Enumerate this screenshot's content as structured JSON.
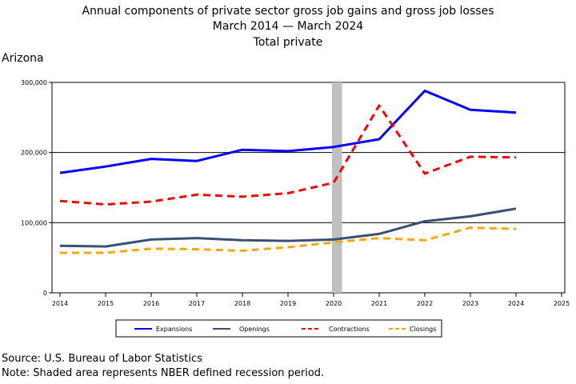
{
  "title": {
    "line1": "Annual components of private sector gross job gains and gross job losses",
    "line2": "March 2014 — March 2024",
    "line3": "Total private"
  },
  "region": "Arizona",
  "source": "Source: U.S. Bureau of Labor Statistics",
  "note": "Note: Shaded area represents NBER defined recession period.",
  "chart_data": {
    "type": "line",
    "xlim": [
      2014,
      2025
    ],
    "ylim": [
      0,
      300000
    ],
    "x_ticks": [
      "2014",
      "2015",
      "2016",
      "2017",
      "2018",
      "2019",
      "2020",
      "2021",
      "2022",
      "2023",
      "2024",
      "2025"
    ],
    "y_ticks": [
      "0",
      "100,000",
      "200,000",
      "300,000"
    ],
    "grid": "horizontal",
    "recession": [
      2020.0,
      2020.15
    ],
    "legend_position": "bottom",
    "x": [
      2014,
      2015,
      2016,
      2017,
      2018,
      2019,
      2020,
      2021,
      2022,
      2023,
      2024
    ],
    "series": [
      {
        "name": "Expansions",
        "color": "#0000ff",
        "style": "solid",
        "width": 3,
        "values": [
          171000,
          180000,
          191000,
          188000,
          204000,
          202000,
          208000,
          219000,
          288000,
          261000,
          257000
        ]
      },
      {
        "name": "Openings",
        "color": "#3b4e74",
        "style": "solid",
        "width": 3,
        "values": [
          67000,
          66000,
          76000,
          78000,
          75000,
          74000,
          76000,
          84000,
          102000,
          109000,
          120000
        ]
      },
      {
        "name": "Contractions",
        "color": "#ff0000",
        "style": "dashed",
        "width": 3,
        "values": [
          131000,
          126000,
          130000,
          140000,
          137000,
          142000,
          157000,
          267000,
          170000,
          194000,
          193000
        ]
      },
      {
        "name": "Closings",
        "color": "#ffa500",
        "style": "dashed",
        "width": 3,
        "values": [
          57000,
          57000,
          63000,
          62000,
          60000,
          65000,
          72000,
          78000,
          75000,
          93000,
          91000
        ]
      }
    ]
  }
}
